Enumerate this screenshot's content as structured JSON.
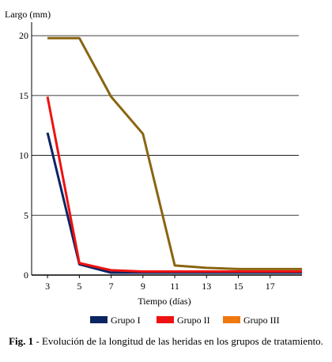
{
  "chart_data": {
    "type": "line",
    "ylabel": "Largo (mm)",
    "xlabel": "Tiempo (días)",
    "x_ticks": [
      3,
      5,
      7,
      9,
      11,
      13,
      15,
      17
    ],
    "y_ticks": [
      0,
      5,
      10,
      15,
      20
    ],
    "xlim": [
      2,
      19
    ],
    "ylim": [
      0,
      21
    ],
    "grid": "horizontal",
    "legend_position": "bottom",
    "x": [
      3,
      5,
      7,
      9,
      11,
      13,
      15,
      17,
      19
    ],
    "series": [
      {
        "name": "Grupo I",
        "color": "#0b2462",
        "values": [
          11.9,
          0.9,
          0.2,
          0.2,
          0.2,
          0.2,
          0.2,
          0.2,
          0.2
        ]
      },
      {
        "name": "Grupo II",
        "color": "#ee1111",
        "values": [
          14.9,
          1.0,
          0.4,
          0.3,
          0.3,
          0.3,
          0.3,
          0.3,
          0.3
        ]
      },
      {
        "name": "Grupo III",
        "color": "#8a6410",
        "legend_color": "#f07810",
        "values": [
          19.8,
          19.8,
          14.9,
          11.8,
          0.8,
          0.6,
          0.5,
          0.5,
          0.5
        ]
      }
    ]
  },
  "caption": {
    "label": "Fig. 1",
    "text": " - Evolución de la longitud de las heridas en los grupos de tratamiento."
  }
}
